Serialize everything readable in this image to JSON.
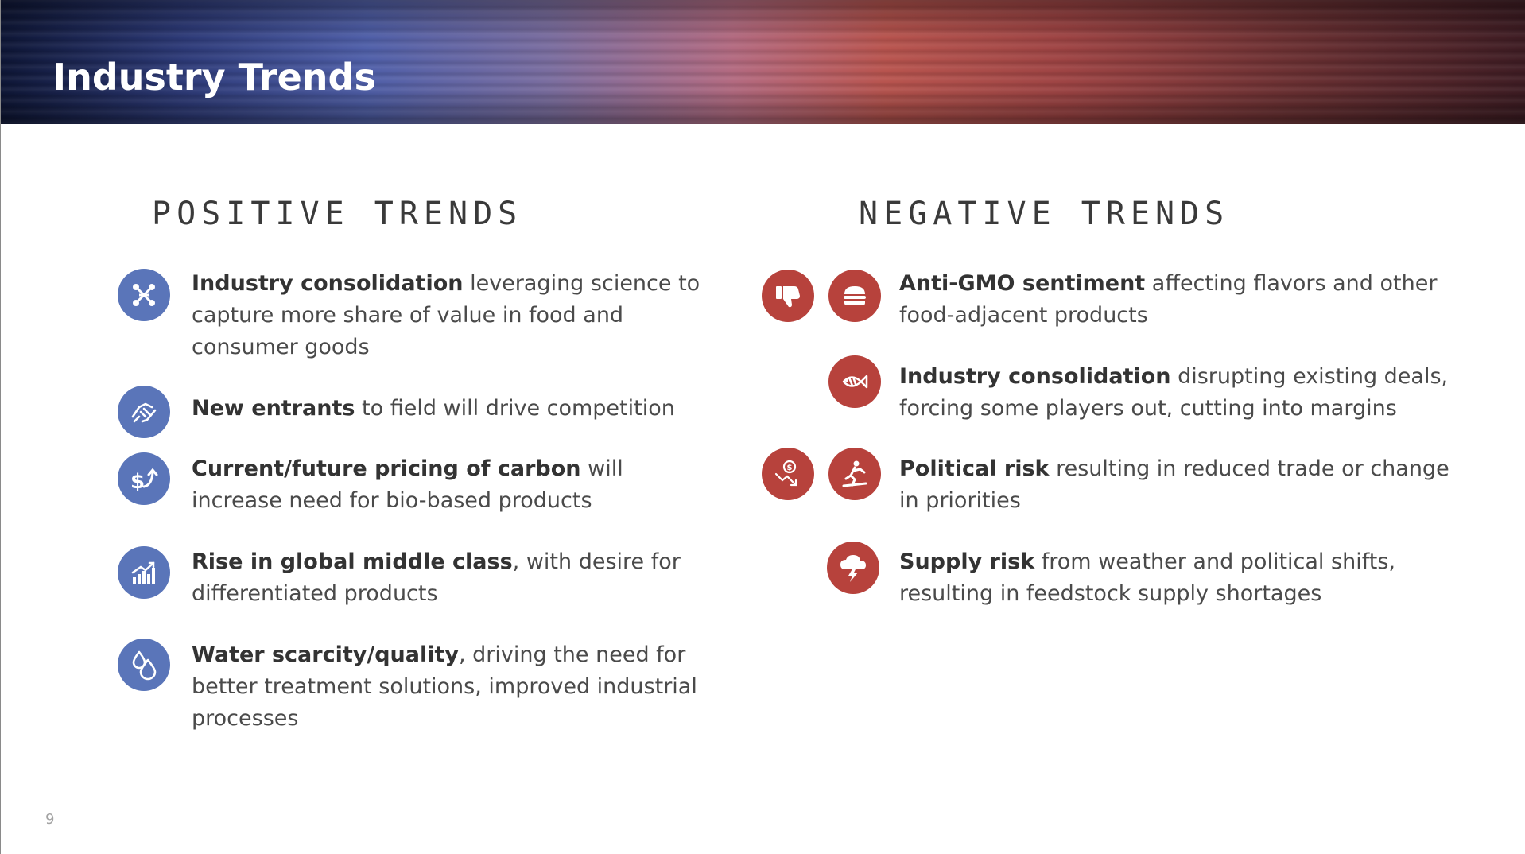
{
  "header": {
    "title": "Industry Trends"
  },
  "positive": {
    "heading": "POSITIVE TRENDS",
    "items": [
      {
        "bold": "Industry consolidation",
        "rest": " leveraging science to capture more share of value in food and consumer goods",
        "icon": "network-nodes-icon"
      },
      {
        "bold": "New entrants",
        "rest": " to field will drive competition",
        "icon": "handshake-icon"
      },
      {
        "bold": "Current/future pricing of carbon",
        "rest": " will increase need for bio-based products",
        "icon": "dollar-arrow-icon"
      },
      {
        "bold": "Rise in global middle class",
        "rest": ", with desire for differentiated products",
        "icon": "growth-chart-icon"
      },
      {
        "bold": "Water scarcity/quality",
        "rest": ", driving the need for better treatment solutions, improved industrial processes",
        "icon": "water-drops-icon"
      }
    ]
  },
  "negative": {
    "heading": "NEGATIVE TRENDS",
    "items": [
      {
        "bold": "Anti-GMO sentiment",
        "rest": " affecting flavors and other food-adjacent products",
        "icons": [
          "thumbs-down-icon",
          "burger-icon"
        ]
      },
      {
        "bold": "Industry consolidation",
        "rest": " disrupting existing deals, forcing some players out, cutting into margins",
        "icons": [
          "fish-icon"
        ]
      },
      {
        "bold": "Political risk",
        "rest": " resulting in reduced trade or change in priorities",
        "icons": [
          "falling-dollar-icon",
          "stumbling-person-icon"
        ]
      },
      {
        "bold": "Supply risk",
        "rest": " from weather and political shifts, resulting in feedstock supply shortages",
        "icons": [
          "storm-cloud-icon"
        ]
      }
    ]
  },
  "footer": {
    "page_number": "9"
  },
  "colors": {
    "positive_icon": "#5a75b9",
    "negative_icon": "#b7423c"
  }
}
